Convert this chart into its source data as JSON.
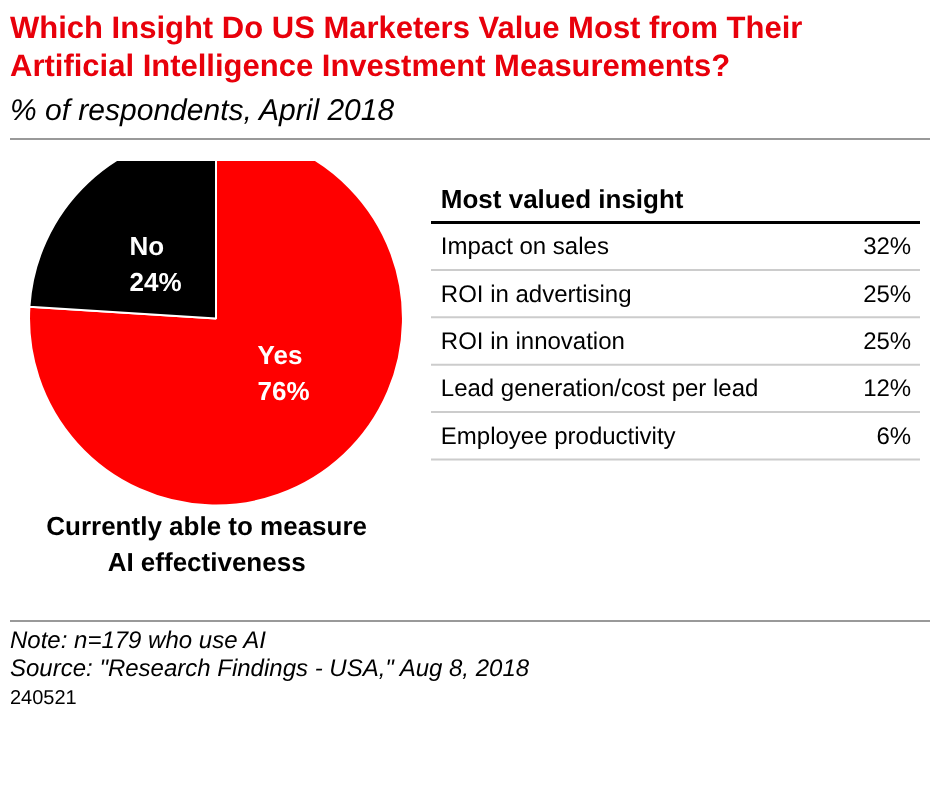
{
  "chart_data": [
    {
      "type": "pie",
      "title": "Which Insight Do US Marketers Value Most from Their Artificial Intelligence Investment Measurements?",
      "subtitle": "% of respondents, April 2018",
      "xlabel": "Currently able to measure AI effectiveness",
      "categories": [
        "Yes",
        "No"
      ],
      "values": [
        76,
        24
      ],
      "colors": [
        "#ff0000",
        "#000000"
      ],
      "value_labels": [
        "76%",
        "24%"
      ],
      "annotations": [
        "Note: n=179 who use AI",
        "Source: \"Research Findings - USA,\" Aug 8, 2018",
        "240521"
      ]
    },
    {
      "type": "other",
      "title": "Most valued insight",
      "categories": [
        "Impact on sales",
        "ROI in advertising",
        "ROI in innovation",
        "Lead generation/cost per lead",
        "Employee productivity"
      ],
      "value_labels": [
        "32%",
        "25%",
        "25%",
        "12%",
        "6%"
      ]
    }
  ]
}
